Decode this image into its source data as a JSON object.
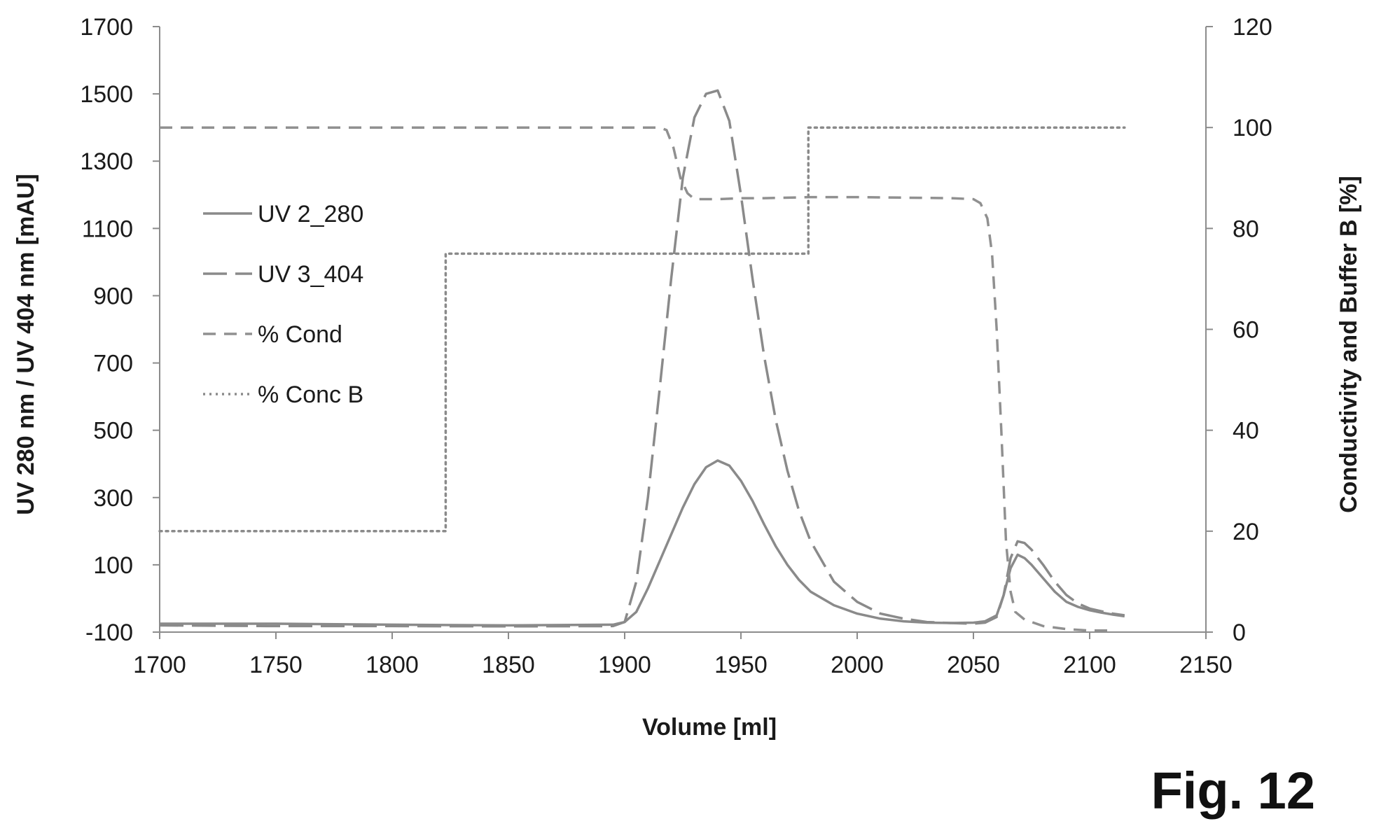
{
  "figure_label": "Fig. 12",
  "colors": {
    "uv280": "#8a8a8a",
    "uv404": "#8a8a8a",
    "cond": "#909090",
    "concB": "#8a8a8a",
    "axis": "#8c8c8c",
    "text": "#1a1a1a"
  },
  "chart_data": {
    "type": "line",
    "title": "",
    "xlabel": "Volume [ml]",
    "ylabel_left": "UV 280 nm / UV 404 nm [mAU]",
    "ylabel_right": "Conductivity and Buffer B [%]",
    "xlim": [
      1700,
      2150
    ],
    "ylim_left": [
      -100,
      1700
    ],
    "ylim_right": [
      0,
      120
    ],
    "x_ticks": [
      "1700",
      "1750",
      "1800",
      "1850",
      "1900",
      "1950",
      "2000",
      "2050",
      "2100",
      "2150"
    ],
    "y_left_ticks": [
      "1700",
      "1500",
      "1300",
      "1100",
      "900",
      "700",
      "500",
      "300",
      "100",
      "-100"
    ],
    "y_right_ticks": [
      "120",
      "100",
      "80",
      "60",
      "40",
      "20",
      "0"
    ],
    "grid": false,
    "legend_position": "left",
    "series": [
      {
        "name": "UV 2_280",
        "axis": "left",
        "style": "solid",
        "x": [
          1700,
          1750,
          1800,
          1850,
          1895,
          1900,
          1905,
          1910,
          1915,
          1920,
          1925,
          1930,
          1935,
          1940,
          1945,
          1950,
          1955,
          1960,
          1965,
          1970,
          1975,
          1980,
          1990,
          2000,
          2010,
          2020,
          2030,
          2040,
          2050,
          2055,
          2060,
          2063,
          2066,
          2069,
          2072,
          2075,
          2080,
          2085,
          2090,
          2095,
          2100,
          2105,
          2110,
          2115
        ],
        "y": [
          -75,
          -75,
          -78,
          -80,
          -78,
          -70,
          -40,
          30,
          110,
          190,
          270,
          340,
          390,
          410,
          395,
          350,
          290,
          220,
          155,
          100,
          55,
          20,
          -20,
          -45,
          -60,
          -68,
          -72,
          -73,
          -72,
          -68,
          -50,
          10,
          90,
          130,
          120,
          100,
          60,
          20,
          -10,
          -25,
          -35,
          -42,
          -48,
          -53
        ]
      },
      {
        "name": "UV 3_404",
        "axis": "left",
        "style": "long-dash",
        "x": [
          1700,
          1750,
          1800,
          1850,
          1895,
          1900,
          1905,
          1910,
          1915,
          1920,
          1925,
          1930,
          1935,
          1940,
          1945,
          1950,
          1955,
          1960,
          1965,
          1970,
          1975,
          1980,
          1990,
          2000,
          2010,
          2020,
          2030,
          2040,
          2050,
          2055,
          2060,
          2063,
          2066,
          2069,
          2072,
          2075,
          2080,
          2085,
          2090,
          2095,
          2100,
          2105,
          2110,
          2115
        ],
        "y": [
          -80,
          -82,
          -82,
          -83,
          -82,
          -70,
          50,
          300,
          620,
          950,
          1250,
          1430,
          1500,
          1510,
          1420,
          1200,
          950,
          720,
          530,
          380,
          260,
          170,
          50,
          -10,
          -45,
          -60,
          -70,
          -73,
          -75,
          -72,
          -55,
          10,
          120,
          170,
          165,
          145,
          100,
          50,
          10,
          -15,
          -30,
          -38,
          -45,
          -50
        ]
      },
      {
        "name": "% Cond",
        "axis": "right",
        "style": "dash",
        "x": [
          1700,
          1750,
          1800,
          1850,
          1900,
          1915,
          1918,
          1921,
          1924,
          1927,
          1930,
          1935,
          1940,
          1950,
          1960,
          1980,
          2000,
          2040,
          2050,
          2053,
          2056,
          2058,
          2060,
          2062,
          2064,
          2066,
          2068,
          2072,
          2080,
          2090,
          2100,
          2110
        ],
        "y": [
          100,
          100,
          100,
          100,
          100,
          100,
          99.5,
          96,
          90,
          87,
          85.8,
          85.8,
          85.8,
          86,
          86,
          86.2,
          86.2,
          86,
          85.8,
          85,
          82,
          75,
          60,
          40,
          18,
          8,
          4,
          2.5,
          1.2,
          0.6,
          0.3,
          0.3
        ]
      },
      {
        "name": "% Conc B",
        "axis": "right",
        "style": "dotted",
        "x": [
          1700,
          1823,
          1823,
          1979,
          1979,
          2115
        ],
        "y": [
          20,
          20,
          75,
          75,
          100,
          100
        ]
      }
    ]
  }
}
